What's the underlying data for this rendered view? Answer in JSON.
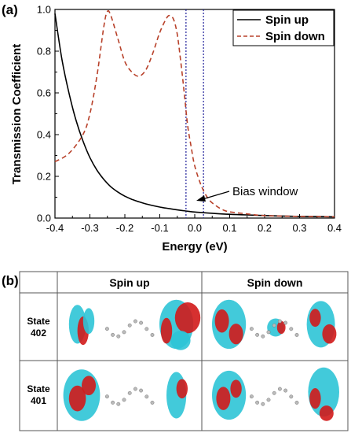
{
  "panel_a_label": "(a)",
  "panel_b_label": "(b)",
  "colors": {
    "spin_up": "#000000",
    "spin_down": "#b8412a",
    "bias_lines": "#1f1f9a",
    "orbital_red": "#d21a1a",
    "orbital_cyan": "#2ec4d6"
  },
  "chart_data": {
    "type": "line",
    "xlabel": "Energy (eV)",
    "ylabel": "Transmission Coefficient",
    "xlim": [
      -0.4,
      0.4
    ],
    "ylim": [
      0.0,
      1.0
    ],
    "xticks": [
      "-0.4",
      "-0.3",
      "-0.2",
      "-0.1",
      "0.0",
      "0.1",
      "0.2",
      "0.3",
      "0.4"
    ],
    "yticks": [
      "0.0",
      "0.2",
      "0.4",
      "0.6",
      "0.8",
      "1.0"
    ],
    "legend_position": "top-right",
    "series": [
      {
        "name": "Spin up",
        "line_style": "solid",
        "x": [
          -0.4,
          -0.38,
          -0.36,
          -0.34,
          -0.32,
          -0.3,
          -0.28,
          -0.26,
          -0.24,
          -0.22,
          -0.2,
          -0.18,
          -0.16,
          -0.14,
          -0.12,
          -0.1,
          -0.08,
          -0.06,
          -0.04,
          -0.02,
          0.0,
          0.05,
          0.1,
          0.15,
          0.2,
          0.25,
          0.3,
          0.35,
          0.4
        ],
        "y": [
          0.98,
          0.76,
          0.6,
          0.47,
          0.37,
          0.29,
          0.23,
          0.185,
          0.15,
          0.125,
          0.105,
          0.09,
          0.078,
          0.068,
          0.06,
          0.053,
          0.047,
          0.042,
          0.037,
          0.033,
          0.029,
          0.023,
          0.018,
          0.015,
          0.012,
          0.01,
          0.008,
          0.007,
          0.006
        ]
      },
      {
        "name": "Spin down",
        "line_style": "dashed",
        "x": [
          -0.4,
          -0.36,
          -0.32,
          -0.3,
          -0.28,
          -0.26,
          -0.25,
          -0.24,
          -0.22,
          -0.2,
          -0.18,
          -0.16,
          -0.14,
          -0.12,
          -0.1,
          -0.08,
          -0.07,
          -0.06,
          -0.05,
          -0.04,
          -0.03,
          -0.02,
          -0.01,
          0.0,
          0.02,
          0.04,
          0.06,
          0.08,
          0.1,
          0.15,
          0.2,
          0.3,
          0.4
        ],
        "y": [
          0.27,
          0.31,
          0.4,
          0.5,
          0.68,
          0.92,
          0.99,
          0.97,
          0.86,
          0.75,
          0.7,
          0.68,
          0.71,
          0.79,
          0.89,
          0.96,
          0.97,
          0.95,
          0.88,
          0.75,
          0.6,
          0.44,
          0.34,
          0.25,
          0.15,
          0.09,
          0.06,
          0.04,
          0.03,
          0.02,
          0.012,
          0.008,
          0.006
        ]
      }
    ],
    "vlines": [
      -0.025,
      0.025
    ],
    "annotations": [
      {
        "text": "Bias window",
        "x": 0.0,
        "y": 0.1
      }
    ]
  },
  "table": {
    "columns": [
      "Spin up",
      "Spin down"
    ],
    "rows": [
      {
        "label_line1": "State",
        "label_line2": "402"
      },
      {
        "label_line1": "State",
        "label_line2": "401"
      }
    ]
  }
}
